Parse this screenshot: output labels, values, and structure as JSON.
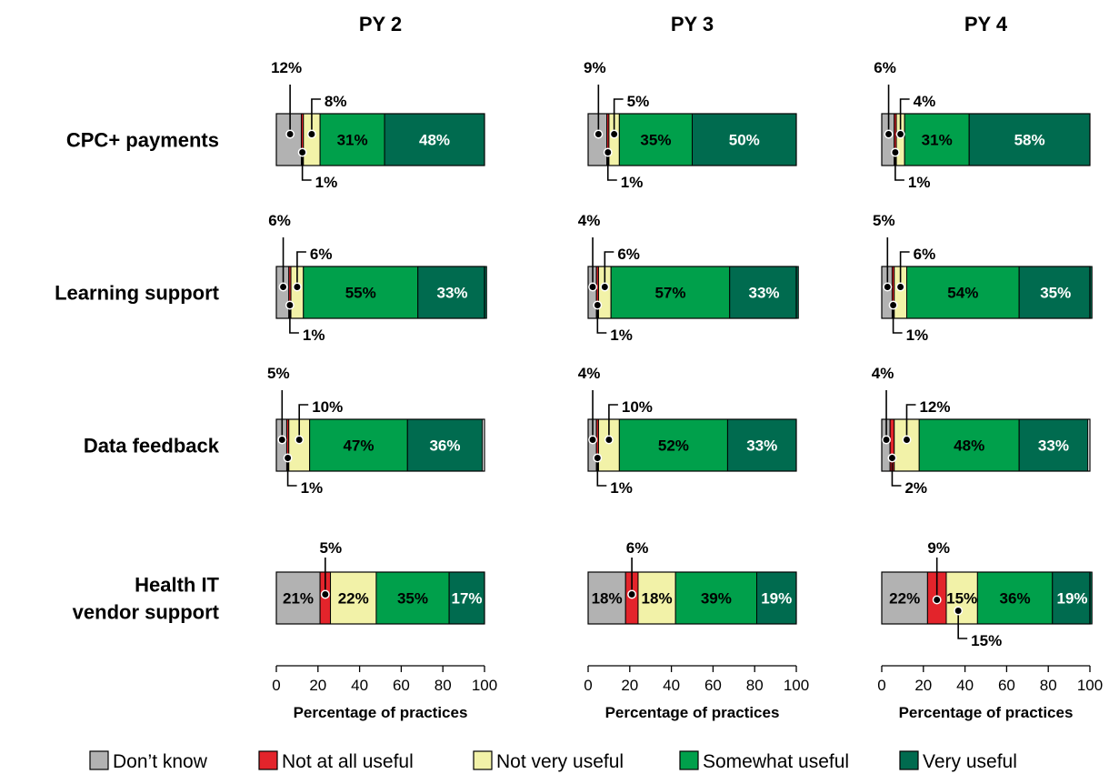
{
  "chart_data": {
    "type": "bar",
    "orientation": "horizontal",
    "stacked": true,
    "panels": [
      "PY 2",
      "PY 3",
      "PY 4"
    ],
    "categories": [
      "CPC+ payments",
      "Learning support",
      "Data feedback",
      "Health IT vendor support"
    ],
    "category_lines": [
      [
        "CPC+ payments"
      ],
      [
        "Learning support"
      ],
      [
        "Data feedback"
      ],
      [
        "Health IT",
        "vendor support"
      ]
    ],
    "series": [
      {
        "name": "Don’t know",
        "color": "#b2b2b2",
        "values": [
          [
            12,
            6,
            5,
            21
          ],
          [
            9,
            4,
            4,
            18
          ],
          [
            6,
            5,
            4,
            22
          ]
        ]
      },
      {
        "name": "Not at all useful",
        "color": "#e3242b",
        "values": [
          [
            1,
            1,
            1,
            5
          ],
          [
            1,
            1,
            1,
            6
          ],
          [
            1,
            1,
            2,
            9
          ]
        ]
      },
      {
        "name": "Not very useful",
        "color": "#f2f2a8",
        "values": [
          [
            8,
            6,
            10,
            22
          ],
          [
            5,
            6,
            10,
            18
          ],
          [
            4,
            6,
            12,
            15
          ]
        ]
      },
      {
        "name": "Somewhat useful",
        "color": "#00a04b",
        "values": [
          [
            31,
            55,
            47,
            35
          ],
          [
            35,
            57,
            52,
            39
          ],
          [
            31,
            54,
            48,
            36
          ]
        ]
      },
      {
        "name": "Very useful",
        "color": "#006b4f",
        "values": [
          [
            48,
            33,
            36,
            17
          ],
          [
            50,
            33,
            33,
            19
          ],
          [
            58,
            35,
            33,
            19
          ]
        ]
      }
    ],
    "xlabel": "Percentage of practices",
    "xlim": [
      0,
      100
    ],
    "xticks": [
      0,
      20,
      40,
      60,
      80,
      100
    ],
    "grid": false,
    "legend_position": "bottom"
  }
}
